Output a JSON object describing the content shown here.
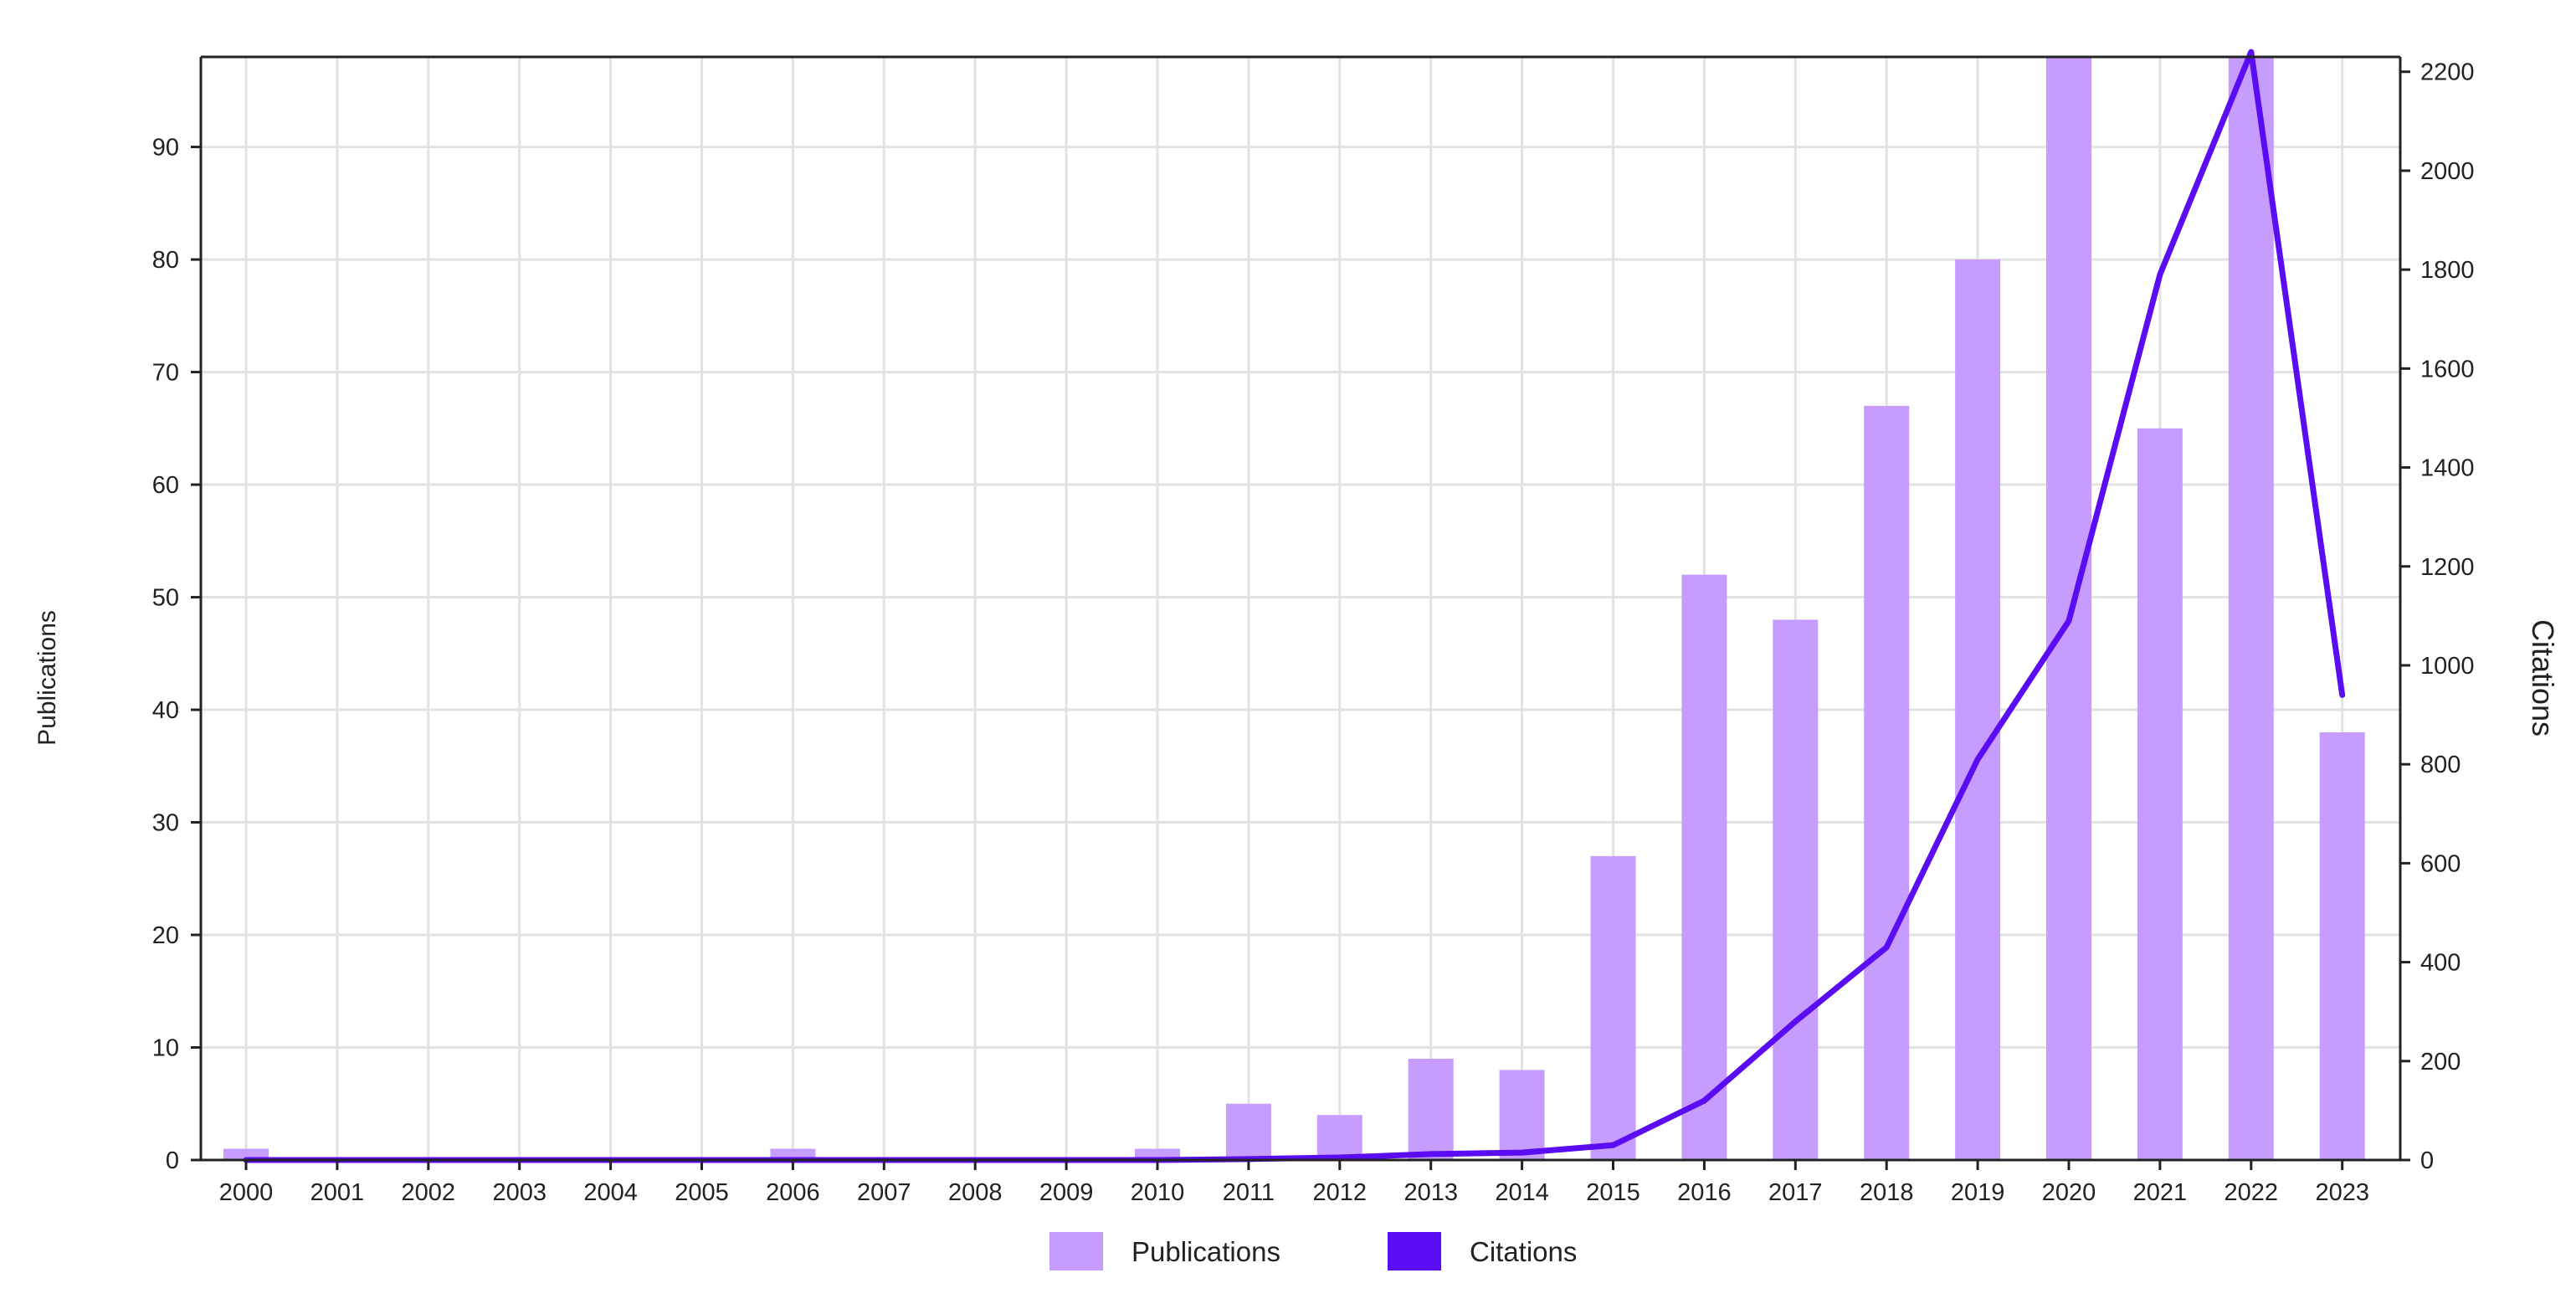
{
  "chart_data": {
    "type": "bar",
    "categories": [
      "2000",
      "2001",
      "2002",
      "2003",
      "2004",
      "2005",
      "2006",
      "2007",
      "2008",
      "2009",
      "2010",
      "2011",
      "2012",
      "2013",
      "2014",
      "2015",
      "2016",
      "2017",
      "2018",
      "2019",
      "2020",
      "2021",
      "2022",
      "2023"
    ],
    "series": [
      {
        "name": "Publications",
        "type": "bar",
        "axis": "left",
        "color": "#c69cff",
        "values": [
          1,
          0,
          0,
          0,
          0,
          0,
          1,
          0,
          0,
          0,
          1,
          5,
          4,
          9,
          8,
          27,
          52,
          48,
          67,
          80,
          98,
          65,
          98,
          38
        ]
      },
      {
        "name": "Citations",
        "type": "line",
        "axis": "right",
        "color": "#5a0cf2",
        "values": [
          0,
          0,
          0,
          0,
          0,
          0,
          0,
          0,
          0,
          0,
          0,
          2,
          5,
          12,
          15,
          30,
          120,
          280,
          430,
          810,
          1090,
          1790,
          2240,
          940
        ]
      }
    ],
    "ylabel": "Publications",
    "y2label": "Citations",
    "ylim": [
      0,
      98
    ],
    "y2lim": [
      0,
      2230
    ],
    "y_ticks": [
      0,
      10,
      20,
      30,
      40,
      50,
      60,
      70,
      80,
      90
    ],
    "y2_ticks": [
      0,
      200,
      400,
      600,
      800,
      1000,
      1200,
      1400,
      1600,
      1800,
      2000,
      2200
    ],
    "grid": true,
    "legend_position": "bottom-center",
    "legend": [
      {
        "label": "Publications",
        "color": "#c69cff"
      },
      {
        "label": "Citations",
        "color": "#5a0cf2"
      }
    ]
  }
}
